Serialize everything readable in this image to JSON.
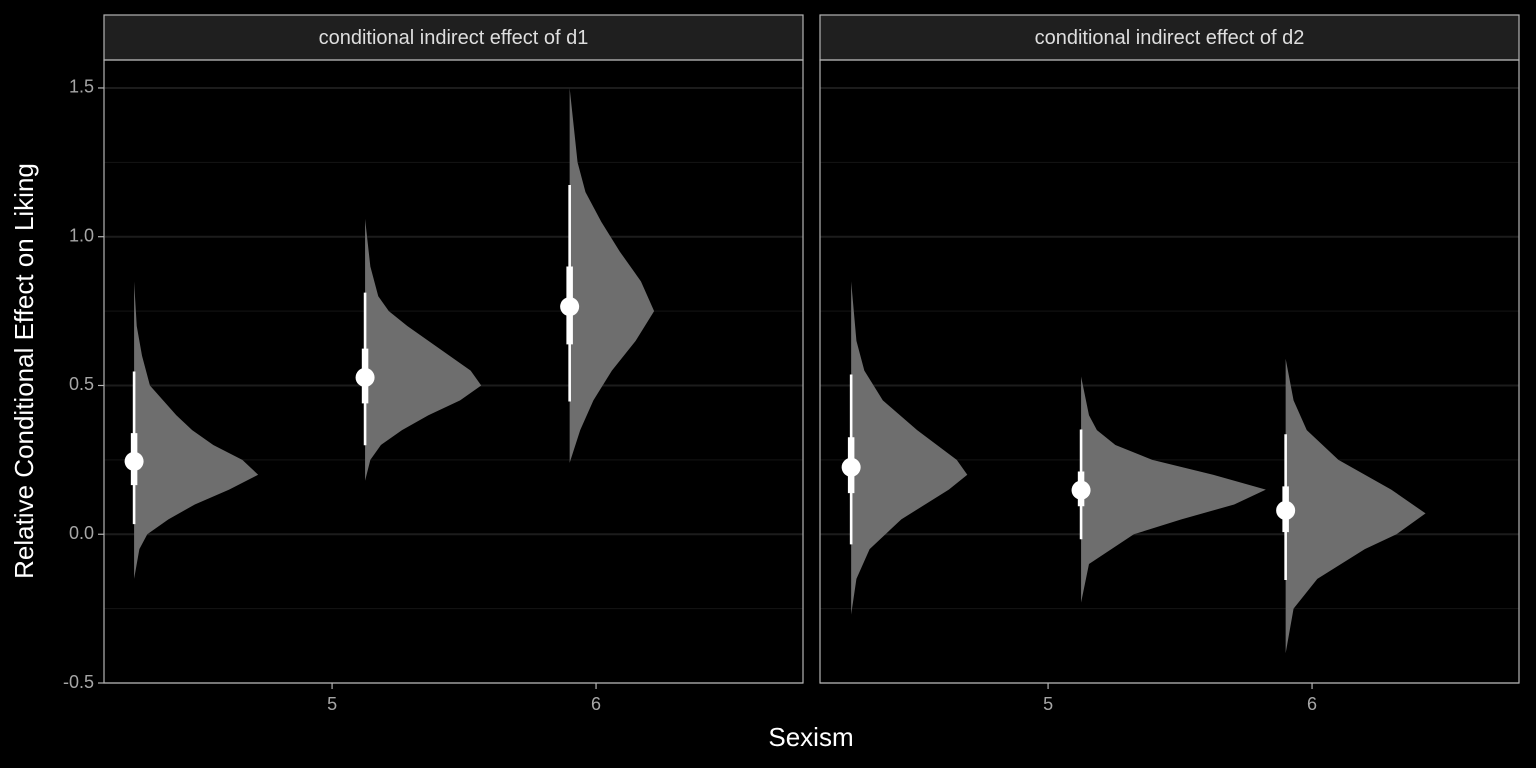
{
  "chart_data": {
    "type": "halfeye",
    "ylabel": "Relative Conditional Effect on Liking",
    "xlabel": "Sexism",
    "ylim": [
      -0.5,
      1.594
    ],
    "yticks": [
      -0.5,
      {
        "value": 0,
        "label": "0.0"
      },
      0.5,
      {
        "value": 1,
        "label": "1.0"
      },
      1.5
    ],
    "minor_yticks": [
      -0.25,
      0.25,
      0.75,
      1.25
    ],
    "xlim": [
      4.136,
      6.784
    ],
    "xticks": [
      5,
      6
    ],
    "grid": true,
    "density_color": "#6e6e6e",
    "interval_color": "#ffffff",
    "panels": [
      {
        "title": "conditional indirect effect of d1",
        "distributions": [
          {
            "x": 4.25,
            "point": 0.245,
            "interval_66": [
              0.165,
              0.34
            ],
            "interval_95": [
              0.034,
              0.547
            ],
            "density": {
              "y": [
                -0.15,
                -0.05,
                0.0,
                0.05,
                0.1,
                0.15,
                0.2,
                0.25,
                0.3,
                0.35,
                0.4,
                0.45,
                0.5,
                0.6,
                0.7,
                0.85
              ],
              "thickness": [
                0,
                0.02,
                0.05,
                0.13,
                0.23,
                0.36,
                0.47,
                0.41,
                0.3,
                0.22,
                0.16,
                0.11,
                0.06,
                0.03,
                0.01,
                0
              ]
            }
          },
          {
            "x": 5.125,
            "point": 0.527,
            "interval_66": [
              0.44,
              0.624
            ],
            "interval_95": [
              0.299,
              0.812
            ],
            "density": {
              "y": [
                0.18,
                0.25,
                0.3,
                0.35,
                0.4,
                0.45,
                0.5,
                0.55,
                0.6,
                0.65,
                0.7,
                0.75,
                0.8,
                0.9,
                1.06
              ],
              "thickness": [
                0,
                0.02,
                0.06,
                0.14,
                0.24,
                0.36,
                0.44,
                0.4,
                0.32,
                0.24,
                0.16,
                0.09,
                0.05,
                0.02,
                0
              ]
            }
          },
          {
            "x": 5.9,
            "point": 0.765,
            "interval_66": [
              0.638,
              0.9
            ],
            "interval_95": [
              0.446,
              1.174
            ],
            "density": {
              "y": [
                0.24,
                0.35,
                0.45,
                0.55,
                0.65,
                0.75,
                0.85,
                0.95,
                1.05,
                1.15,
                1.25,
                1.5
              ],
              "thickness": [
                0,
                0.04,
                0.09,
                0.16,
                0.25,
                0.32,
                0.27,
                0.19,
                0.12,
                0.06,
                0.03,
                0
              ]
            }
          }
        ]
      },
      {
        "title": "conditional indirect effect of d2",
        "distributions": [
          {
            "x": 4.254,
            "point": 0.225,
            "interval_66": [
              0.138,
              0.326
            ],
            "interval_95": [
              -0.034,
              0.537
            ],
            "density": {
              "y": [
                -0.27,
                -0.15,
                -0.05,
                0.05,
                0.15,
                0.2,
                0.25,
                0.35,
                0.45,
                0.55,
                0.65,
                0.85
              ],
              "thickness": [
                0,
                0.02,
                0.07,
                0.19,
                0.37,
                0.44,
                0.4,
                0.25,
                0.12,
                0.05,
                0.02,
                0
              ]
            }
          },
          {
            "x": 5.125,
            "point": 0.148,
            "interval_66": [
              0.094,
              0.211
            ],
            "interval_95": [
              -0.017,
              0.352
            ],
            "density": {
              "y": [
                -0.23,
                -0.1,
                0.0,
                0.05,
                0.1,
                0.15,
                0.2,
                0.25,
                0.3,
                0.35,
                0.4,
                0.53
              ],
              "thickness": [
                0,
                0.03,
                0.2,
                0.38,
                0.58,
                0.7,
                0.5,
                0.27,
                0.13,
                0.06,
                0.03,
                0
              ]
            }
          },
          {
            "x": 5.9,
            "point": 0.08,
            "interval_66": [
              0.007,
              0.161
            ],
            "interval_95": [
              -0.154,
              0.336
            ],
            "density": {
              "y": [
                -0.4,
                -0.25,
                -0.15,
                -0.05,
                0.0,
                0.07,
                0.15,
                0.25,
                0.35,
                0.45,
                0.59
              ],
              "thickness": [
                0,
                0.03,
                0.12,
                0.3,
                0.42,
                0.53,
                0.4,
                0.2,
                0.08,
                0.03,
                0
              ]
            }
          }
        ]
      }
    ]
  }
}
